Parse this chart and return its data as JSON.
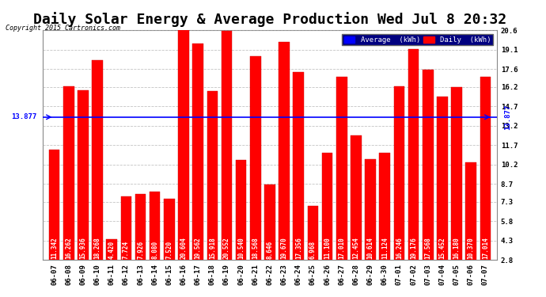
{
  "title": "Daily Solar Energy & Average Production Wed Jul 8 20:32",
  "copyright": "Copyright 2015 Cartronics.com",
  "categories": [
    "06-07",
    "06-08",
    "06-09",
    "06-10",
    "06-11",
    "06-12",
    "06-13",
    "06-14",
    "06-15",
    "06-16",
    "06-17",
    "06-18",
    "06-19",
    "06-20",
    "06-21",
    "06-22",
    "06-23",
    "06-24",
    "06-25",
    "06-26",
    "06-27",
    "06-28",
    "06-29",
    "06-30",
    "07-01",
    "07-02",
    "07-03",
    "07-04",
    "07-05",
    "07-06",
    "07-07"
  ],
  "values": [
    11.342,
    16.262,
    15.936,
    18.268,
    4.42,
    7.724,
    7.926,
    8.08,
    7.52,
    20.604,
    19.562,
    15.918,
    20.552,
    10.54,
    18.568,
    8.646,
    19.67,
    17.356,
    6.968,
    11.1,
    17.01,
    12.454,
    10.614,
    11.124,
    16.246,
    19.176,
    17.568,
    15.452,
    16.18,
    10.37,
    17.014
  ],
  "average": 13.877,
  "bar_color": "#ff0000",
  "average_color": "#0000ff",
  "ylim": [
    2.8,
    20.6
  ],
  "yticks": [
    2.8,
    4.3,
    5.8,
    7.3,
    8.7,
    10.2,
    11.7,
    13.2,
    14.7,
    16.2,
    17.6,
    19.1,
    20.6
  ],
  "background_color": "#ffffff",
  "grid_color": "#aaaaaa",
  "bar_edge_color": "#cc0000",
  "title_fontsize": 13,
  "tick_fontsize": 6.5,
  "value_fontsize": 5.5,
  "legend_avg_label": "Average  (kWh)",
  "legend_daily_label": "Daily  (kWh)"
}
